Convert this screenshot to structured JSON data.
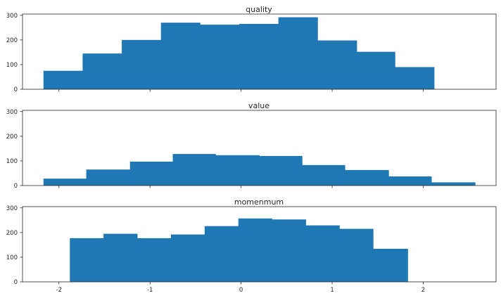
{
  "colors": {
    "bar": "#1f77b4",
    "axis": "#262626",
    "background": "#ffffff"
  },
  "chart_data": [
    {
      "type": "histogram",
      "title": "quality",
      "xlabel": "",
      "ylabel": "",
      "xlim": [
        -2.4,
        2.8
      ],
      "ylim": [
        0,
        305
      ],
      "yticks": [
        0,
        100,
        200,
        300
      ],
      "xticks": [
        -2,
        -1,
        0,
        1,
        2
      ],
      "show_xtick_labels": false,
      "bin_edges": [
        -2.17,
        -1.74,
        -1.31,
        -0.88,
        -0.45,
        -0.02,
        0.41,
        0.84,
        1.27,
        1.69,
        2.12
      ],
      "values": [
        75,
        145,
        200,
        270,
        262,
        265,
        292,
        198,
        152,
        90
      ]
    },
    {
      "type": "histogram",
      "title": "value",
      "xlabel": "",
      "ylabel": "",
      "xlim": [
        -2.4,
        2.8
      ],
      "ylim": [
        0,
        305
      ],
      "yticks": [
        0,
        100,
        200,
        300
      ],
      "xticks": [
        -2,
        -1,
        0,
        1,
        2
      ],
      "show_xtick_labels": false,
      "bin_edges": [
        -2.17,
        -1.7,
        -1.22,
        -0.75,
        -0.28,
        0.2,
        0.67,
        1.14,
        1.62,
        2.09,
        2.57
      ],
      "values": [
        28,
        65,
        97,
        128,
        123,
        120,
        83,
        63,
        37,
        13
      ]
    },
    {
      "type": "histogram",
      "title": "momenmum",
      "xlabel": "",
      "ylabel": "",
      "xlim": [
        -2.4,
        2.8
      ],
      "ylim": [
        0,
        305
      ],
      "yticks": [
        0,
        100,
        200,
        300
      ],
      "xticks": [
        -2,
        -1,
        0,
        1,
        2
      ],
      "show_xtick_labels": true,
      "bin_edges": [
        -1.88,
        -1.51,
        -1.14,
        -0.77,
        -0.4,
        -0.03,
        0.34,
        0.71,
        1.08,
        1.45,
        1.83
      ],
      "values": [
        177,
        195,
        177,
        192,
        226,
        257,
        253,
        229,
        215,
        134
      ]
    }
  ]
}
